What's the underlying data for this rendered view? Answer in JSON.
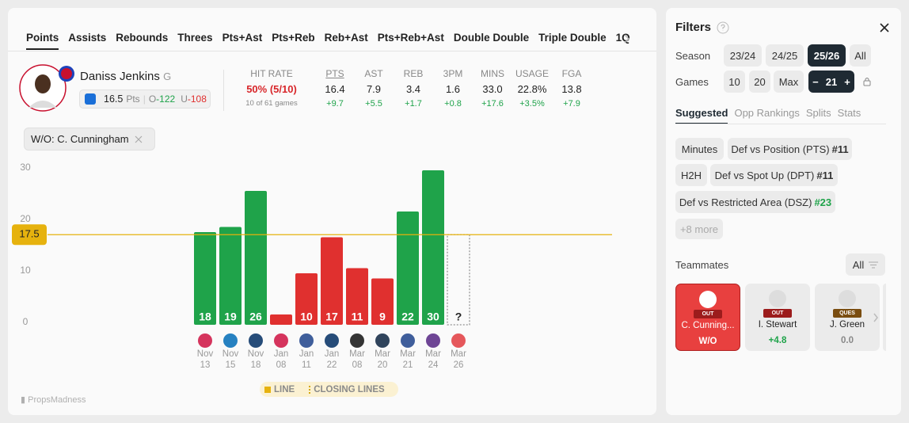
{
  "tabs": [
    "Points",
    "Assists",
    "Rebounds",
    "Threes",
    "Pts+Ast",
    "Pts+Reb",
    "Reb+Ast",
    "Pts+Reb+Ast",
    "Double Double",
    "Triple Double",
    "1Q"
  ],
  "player": {
    "name": "Daniss Jenkins",
    "position": "G",
    "line": "16.5",
    "line_unit": "Pts",
    "over_label": "O",
    "over_odds": "-122",
    "under_label": "U",
    "under_odds": "-108"
  },
  "hit_rate": {
    "label": "HIT RATE",
    "value": "50% (5/10)",
    "sub": "10 of 61 games"
  },
  "stats": [
    {
      "label": "PTS",
      "value": "16.4",
      "diff": "+9.7"
    },
    {
      "label": "AST",
      "value": "7.9",
      "diff": "+5.5"
    },
    {
      "label": "REB",
      "value": "3.4",
      "diff": "+1.7"
    },
    {
      "label": "3PM",
      "value": "1.6",
      "diff": "+0.8"
    },
    {
      "label": "MINS",
      "value": "33.0",
      "diff": "+17.6"
    },
    {
      "label": "USAGE",
      "value": "22.8%",
      "diff": "+3.5%"
    },
    {
      "label": "FGA",
      "value": "13.8",
      "diff": "+7.9"
    }
  ],
  "filter_chip": "W/O: C. Cunningham",
  "watermark": "PropsMadness",
  "chart_data": {
    "type": "bar",
    "categories": [
      "Nov 13",
      "Nov 15",
      "Nov 18",
      "Jan 08",
      "Jan 11",
      "Jan 22",
      "Mar 08",
      "Mar 20",
      "Mar 21",
      "Mar 24",
      "Mar 26"
    ],
    "values": [
      18,
      19,
      26,
      2,
      10,
      17,
      11,
      9,
      22,
      30,
      null
    ],
    "value_labels": [
      "18",
      "19",
      "26",
      null,
      "10",
      "17",
      "11",
      "9",
      "22",
      "30",
      "?"
    ],
    "ylim": [
      0,
      30
    ],
    "yticks": [
      0,
      10,
      20,
      30
    ],
    "line": 17.5,
    "over_color": "#1fa34a",
    "under_color": "#e0302f",
    "line_color": "#e6b20e",
    "legend": [
      "LINE",
      "CLOSING LINES"
    ]
  },
  "filters": {
    "title": "Filters",
    "season_label": "Season",
    "seasons": [
      "23/24",
      "24/25",
      "25/26",
      "All"
    ],
    "games_label": "Games",
    "games": [
      "10",
      "20",
      "Max"
    ],
    "stepper": {
      "minus": "−",
      "value": "21",
      "plus": "+"
    },
    "sub_tabs": [
      "Suggested",
      "Opp Rankings",
      "Splits",
      "Stats"
    ],
    "chips": [
      {
        "label": "Minutes"
      },
      {
        "label": "Def vs Position (PTS)",
        "rank": "#11"
      },
      {
        "label": "H2H"
      },
      {
        "label": "Def vs Spot Up (DPT)",
        "rank": "#11"
      },
      {
        "label": "Def vs Restricted Area (DSZ)",
        "rank": "#23"
      }
    ],
    "more": "+8 more",
    "teammates_label": "Teammates",
    "teammates_filter": "All",
    "teammates": [
      {
        "name": "C. Cunning...",
        "status": "OUT",
        "value": "W/O"
      },
      {
        "name": "I. Stewart",
        "status": "OUT",
        "value": "+4.8"
      },
      {
        "name": "J. Green",
        "status": "QUES",
        "value": "0.0"
      }
    ]
  }
}
